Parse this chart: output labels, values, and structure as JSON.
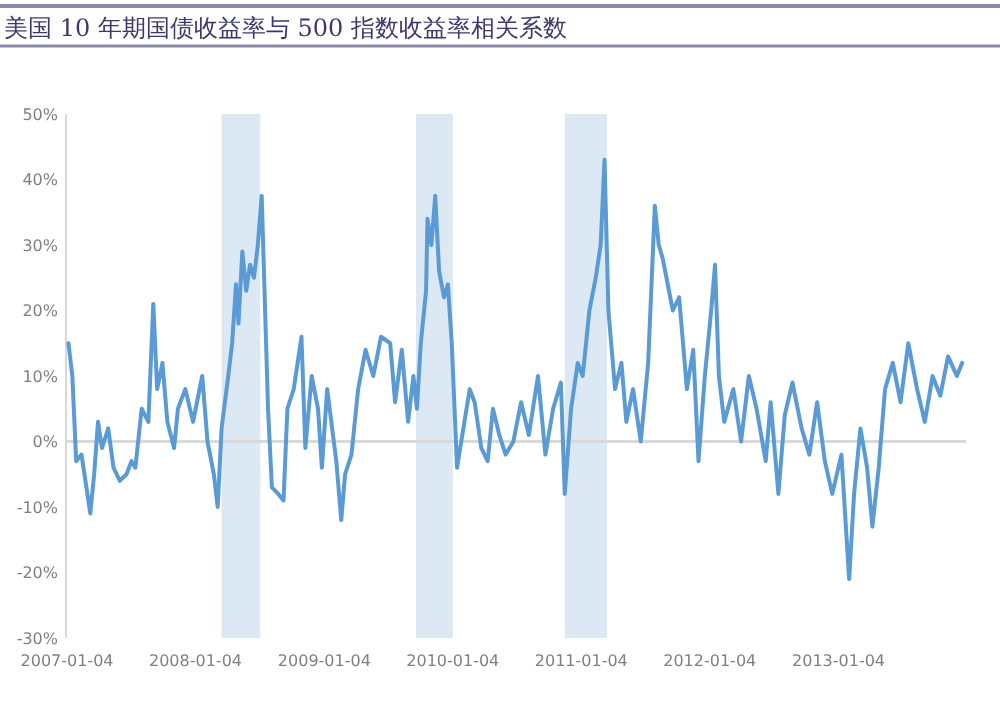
{
  "chart_data": {
    "type": "line",
    "title": "美国 10 年期国债收益率与 500 指数收益率相关系数",
    "x": [
      "2007-01-08",
      "2007-01-19",
      "2007-01-30",
      "2007-02-14",
      "2007-02-28",
      "2007-03-11",
      "2007-03-22",
      "2007-04-02",
      "2007-04-13",
      "2007-05-01",
      "2007-05-16",
      "2007-06-03",
      "2007-06-22",
      "2007-07-06",
      "2007-07-17",
      "2007-08-04",
      "2007-08-23",
      "2007-09-06",
      "2007-09-17",
      "2007-10-02",
      "2007-10-16",
      "2007-11-04",
      "2007-11-15",
      "2007-12-06",
      "2007-12-28",
      "2008-01-23",
      "2008-02-07",
      "2008-02-25",
      "2008-03-07",
      "2008-03-18",
      "2008-04-06",
      "2008-04-17",
      "2008-04-28",
      "2008-05-05",
      "2008-05-16",
      "2008-05-27",
      "2008-06-07",
      "2008-06-18",
      "2008-06-29",
      "2008-07-10",
      "2008-07-28",
      "2008-08-08",
      "2008-08-26",
      "2008-09-10",
      "2008-09-21",
      "2008-10-09",
      "2008-10-31",
      "2008-11-11",
      "2008-11-29",
      "2008-12-17",
      "2008-12-28",
      "2009-01-12",
      "2009-02-07",
      "2009-02-21",
      "2009-03-04",
      "2009-03-22",
      "2009-04-10",
      "2009-05-01",
      "2009-05-23",
      "2009-06-14",
      "2009-07-10",
      "2009-07-24",
      "2009-08-12",
      "2009-08-30",
      "2009-09-14",
      "2009-09-24",
      "2009-10-05",
      "2009-10-20",
      "2009-10-24",
      "2009-11-04",
      "2009-11-15",
      "2009-11-26",
      "2009-12-10",
      "2009-12-21",
      "2010-01-01",
      "2010-01-16",
      "2010-02-03",
      "2010-02-21",
      "2010-03-07",
      "2010-03-26",
      "2010-04-13",
      "2010-04-28",
      "2010-05-16",
      "2010-06-03",
      "2010-06-25",
      "2010-07-17",
      "2010-08-08",
      "2010-09-03",
      "2010-09-24",
      "2010-10-16",
      "2010-11-07",
      "2010-11-18",
      "2010-12-06",
      "2010-12-25",
      "2011-01-08",
      "2011-01-27",
      "2011-02-14",
      "2011-02-28",
      "2011-03-11",
      "2011-03-22",
      "2011-04-10",
      "2011-04-28",
      "2011-05-12",
      "2011-05-31",
      "2011-06-22",
      "2011-07-13",
      "2011-08-01",
      "2011-08-12",
      "2011-08-23",
      "2011-09-03",
      "2011-09-21",
      "2011-10-09",
      "2011-10-31",
      "2011-11-18",
      "2011-12-03",
      "2011-12-21",
      "2012-01-08",
      "2012-01-19",
      "2012-01-30",
      "2012-02-14",
      "2012-03-11",
      "2012-04-02",
      "2012-04-24",
      "2012-05-16",
      "2012-06-11",
      "2012-06-25",
      "2012-07-17",
      "2012-08-04",
      "2012-08-26",
      "2012-09-21",
      "2012-10-13",
      "2012-11-04",
      "2012-11-26",
      "2012-12-17",
      "2013-01-12",
      "2013-02-03",
      "2013-02-17",
      "2013-03-07",
      "2013-03-26",
      "2013-04-10",
      "2013-04-28",
      "2013-05-16",
      "2013-06-07",
      "2013-06-29",
      "2013-07-21",
      "2013-08-15",
      "2013-09-06",
      "2013-09-28",
      "2013-10-20",
      "2013-11-11",
      "2013-12-06",
      "2013-12-21"
    ],
    "series": [
      {
        "color": "#5b9bd5",
        "values": [
          15,
          10,
          -3,
          -2,
          -7,
          -11,
          -5,
          3,
          -1,
          2,
          -4,
          -6,
          -5,
          -3,
          -4,
          5,
          3,
          21,
          8,
          12,
          3,
          -1,
          5,
          8,
          3,
          10,
          0,
          -5,
          -10,
          2,
          10,
          15,
          24,
          18,
          29,
          23,
          27,
          25,
          30,
          37.5,
          5,
          -7,
          -8,
          -9,
          5,
          8,
          16,
          -1,
          10,
          5,
          -4,
          8,
          -3,
          -12,
          -5,
          -2,
          8,
          14,
          10,
          16,
          15,
          6,
          14,
          3,
          10,
          5,
          15,
          23,
          34,
          30,
          37.5,
          26,
          22,
          24,
          15,
          -4,
          2,
          8,
          6,
          -1,
          -3,
          5,
          1,
          -2,
          0,
          6,
          1,
          10,
          -2,
          5,
          9,
          -8,
          5,
          12,
          10,
          20,
          25,
          30,
          43,
          20,
          8,
          12,
          3,
          8,
          0,
          12,
          36,
          30,
          28,
          25,
          20,
          22,
          8,
          14,
          -3,
          10,
          20,
          27,
          10,
          3,
          8,
          0,
          10,
          5,
          -3,
          6,
          -8,
          4,
          9,
          2,
          -2,
          6,
          -3,
          -8,
          -2,
          -21,
          -8,
          2,
          -4,
          -13,
          -4,
          8,
          12,
          6,
          15,
          8,
          3,
          10,
          7,
          13,
          10,
          12
        ]
      }
    ],
    "xlim": [
      "2007-01-01",
      "2014-01-01"
    ],
    "xticks": [
      "2007-01-04",
      "2008-01-04",
      "2009-01-04",
      "2010-01-04",
      "2011-01-04",
      "2012-01-04",
      "2013-01-04"
    ],
    "ylim": [
      -30,
      50
    ],
    "yticks": [
      {
        "value": -30,
        "label": "-30%"
      },
      {
        "value": -20,
        "label": "-20%"
      },
      {
        "value": -10,
        "label": "-10%"
      },
      {
        "value": 0,
        "label": "0%"
      },
      {
        "value": 10,
        "label": "10%"
      },
      {
        "value": 20,
        "label": "20%"
      },
      {
        "value": 30,
        "label": "30%"
      },
      {
        "value": 40,
        "label": "40%"
      },
      {
        "value": 50,
        "label": "50%"
      }
    ],
    "bands": [
      {
        "axis": "x",
        "from": "2008-03-18",
        "to": "2008-07-06",
        "color": "#dce9f5"
      },
      {
        "axis": "x",
        "from": "2009-09-21",
        "to": "2010-01-04",
        "color": "#dce9f5"
      },
      {
        "axis": "x",
        "from": "2010-11-18",
        "to": "2011-03-18",
        "color": "#dce9f5"
      }
    ],
    "ref_lines": [
      {
        "axis": "y",
        "value": 0,
        "color": "#d9d9d9"
      }
    ],
    "grid": false
  }
}
